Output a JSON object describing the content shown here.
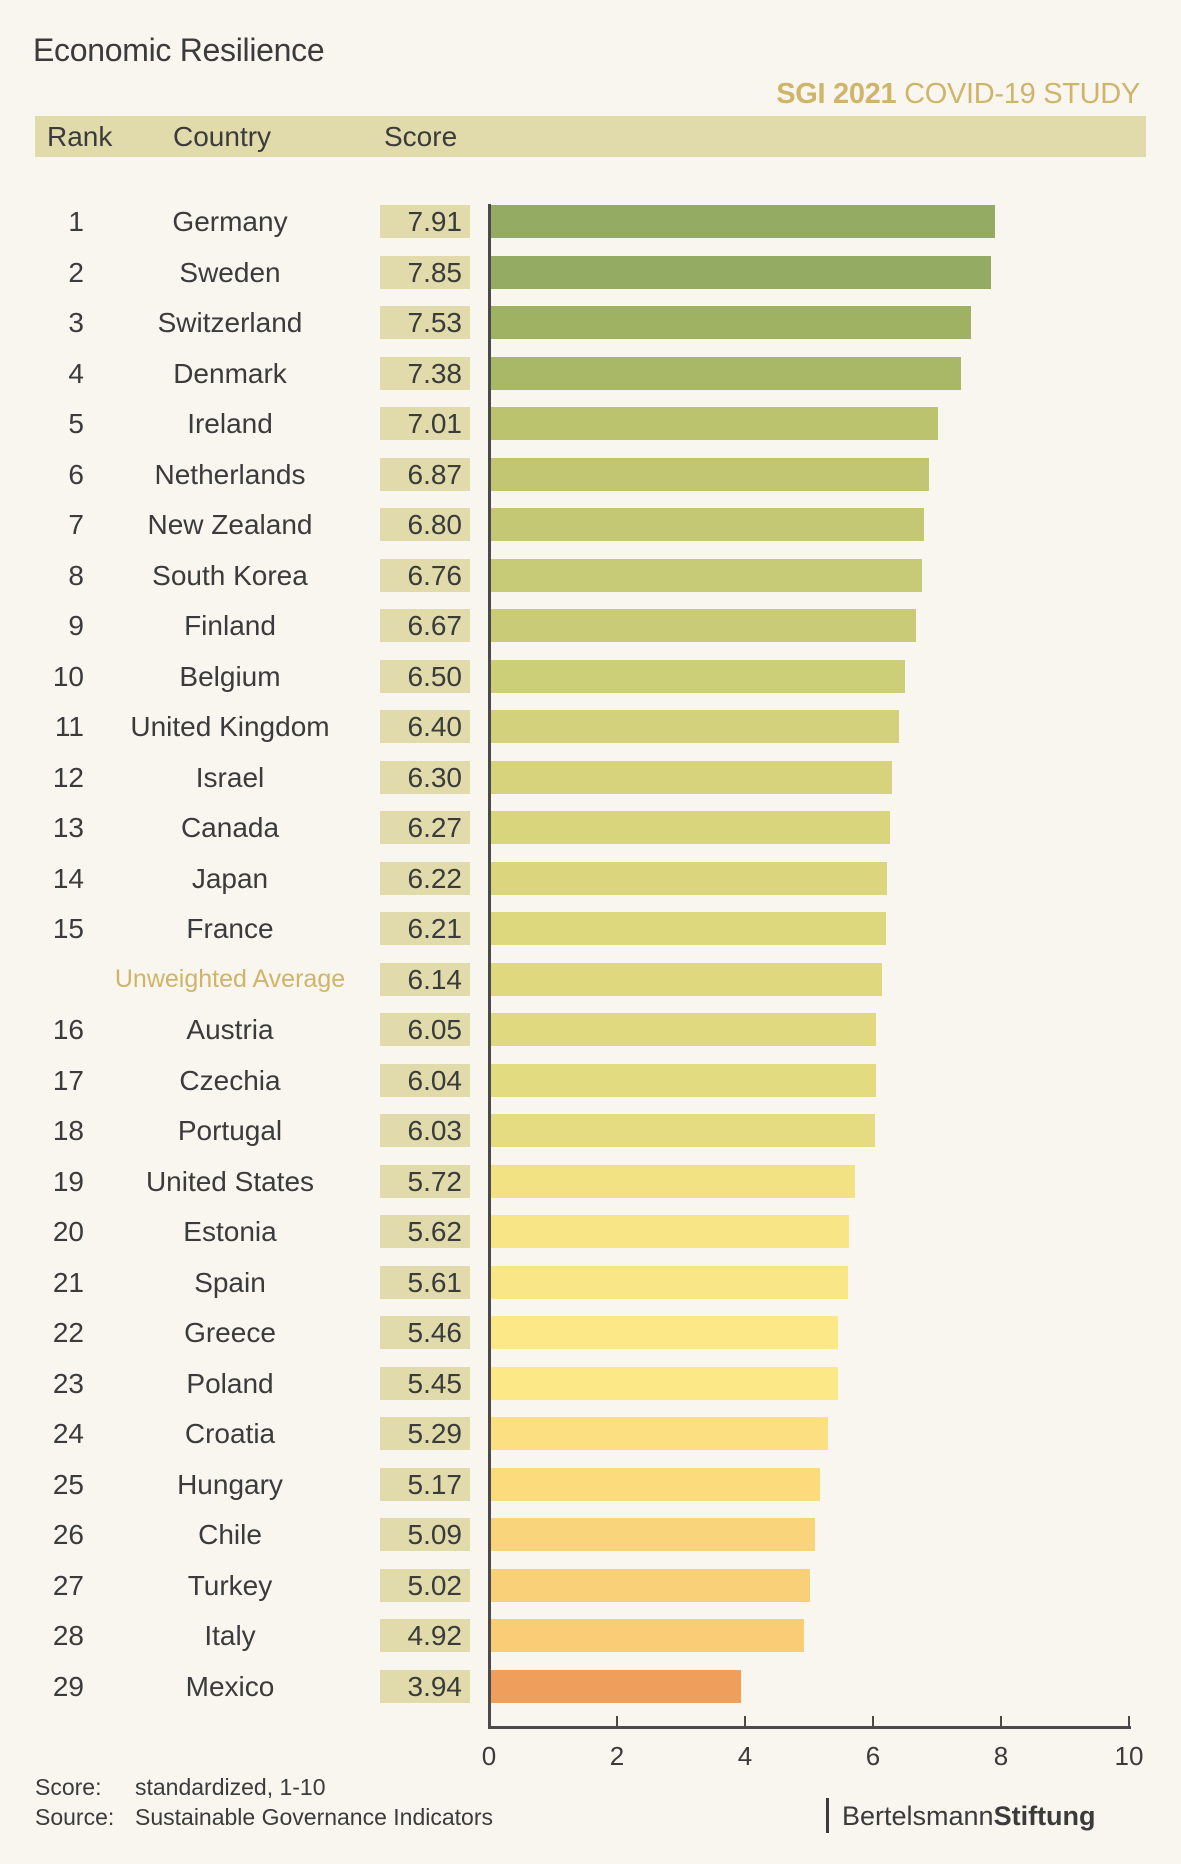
{
  "header": {
    "title": "Economic Resilience",
    "subtitle_bold": "SGI 2021",
    "subtitle_rest": "COVID-19 STUDY",
    "col_rank": "Rank",
    "col_country": "Country",
    "col_score": "Score"
  },
  "footer": {
    "score_label": "Score:",
    "score_text": "standardized, 1-10",
    "source_label": "Source:",
    "source_text": "Sustainable Governance Indicators",
    "logo_regular": "Bertelsmann",
    "logo_bold": "Stiftung"
  },
  "colors": {
    "background": "#f8f6ee",
    "header_band": "#e1dbab",
    "accent": "#cfb56a",
    "text": "#3a3b3a"
  },
  "chart_data": {
    "type": "bar",
    "orientation": "horizontal",
    "title": "Economic Resilience",
    "xlabel": "",
    "ylabel": "",
    "xlim": [
      0,
      10
    ],
    "xticks": [
      "0",
      "2",
      "4",
      "6",
      "8",
      "10"
    ],
    "grid": false,
    "rows": [
      {
        "rank": "1",
        "country": "Germany",
        "score": "7.91",
        "value": 7.91,
        "color": "#93ab62"
      },
      {
        "rank": "2",
        "country": "Sweden",
        "score": "7.85",
        "value": 7.85,
        "color": "#93ab62"
      },
      {
        "rank": "3",
        "country": "Switzerland",
        "score": "7.53",
        "value": 7.53,
        "color": "#9fb264"
      },
      {
        "rank": "4",
        "country": "Denmark",
        "score": "7.38",
        "value": 7.38,
        "color": "#a9b867"
      },
      {
        "rank": "5",
        "country": "Ireland",
        "score": "7.01",
        "value": 7.01,
        "color": "#bcc36f"
      },
      {
        "rank": "6",
        "country": "Netherlands",
        "score": "6.87",
        "value": 6.87,
        "color": "#c2c673"
      },
      {
        "rank": "7",
        "country": "New Zealand",
        "score": "6.80",
        "value": 6.8,
        "color": "#c4c874"
      },
      {
        "rank": "8",
        "country": "South Korea",
        "score": "6.76",
        "value": 6.76,
        "color": "#c7ca76"
      },
      {
        "rank": "9",
        "country": "Finland",
        "score": "6.67",
        "value": 6.67,
        "color": "#c9cb77"
      },
      {
        "rank": "10",
        "country": "Belgium",
        "score": "6.50",
        "value": 6.5,
        "color": "#ccce78"
      },
      {
        "rank": "11",
        "country": "United Kingdom",
        "score": "6.40",
        "value": 6.4,
        "color": "#d3d17b"
      },
      {
        "rank": "12",
        "country": "Israel",
        "score": "6.30",
        "value": 6.3,
        "color": "#d6d37c"
      },
      {
        "rank": "13",
        "country": "Canada",
        "score": "6.27",
        "value": 6.27,
        "color": "#d9d57d"
      },
      {
        "rank": "14",
        "country": "Japan",
        "score": "6.22",
        "value": 6.22,
        "color": "#dbd67e"
      },
      {
        "rank": "15",
        "country": "France",
        "score": "6.21",
        "value": 6.21,
        "color": "#ddd77e"
      },
      {
        "rank": "",
        "country": "Unweighted Average",
        "score": "6.14",
        "value": 6.14,
        "color": "#dfd87f",
        "is_average": true
      },
      {
        "rank": "16",
        "country": "Austria",
        "score": "6.05",
        "value": 6.05,
        "color": "#e0d97f"
      },
      {
        "rank": "17",
        "country": "Czechia",
        "score": "6.04",
        "value": 6.04,
        "color": "#e3db80"
      },
      {
        "rank": "18",
        "country": "Portugal",
        "score": "6.03",
        "value": 6.03,
        "color": "#e5dc81"
      },
      {
        "rank": "19",
        "country": "United States",
        "score": "5.72",
        "value": 5.72,
        "color": "#f3e283"
      },
      {
        "rank": "20",
        "country": "Estonia",
        "score": "5.62",
        "value": 5.62,
        "color": "#f8e585"
      },
      {
        "rank": "21",
        "country": "Spain",
        "score": "5.61",
        "value": 5.61,
        "color": "#f9e686"
      },
      {
        "rank": "22",
        "country": "Greece",
        "score": "5.46",
        "value": 5.46,
        "color": "#fce886"
      },
      {
        "rank": "23",
        "country": "Poland",
        "score": "5.45",
        "value": 5.45,
        "color": "#fde887"
      },
      {
        "rank": "24",
        "country": "Croatia",
        "score": "5.29",
        "value": 5.29,
        "color": "#fcdf80"
      },
      {
        "rank": "25",
        "country": "Hungary",
        "score": "5.17",
        "value": 5.17,
        "color": "#fbdb7c"
      },
      {
        "rank": "26",
        "country": "Chile",
        "score": "5.09",
        "value": 5.09,
        "color": "#f9d47a"
      },
      {
        "rank": "27",
        "country": "Turkey",
        "score": "5.02",
        "value": 5.02,
        "color": "#f9d077"
      },
      {
        "rank": "28",
        "country": "Italy",
        "score": "4.92",
        "value": 4.92,
        "color": "#f9cc75"
      },
      {
        "rank": "29",
        "country": "Mexico",
        "score": "3.94",
        "value": 3.94,
        "color": "#f09e5c"
      }
    ]
  }
}
